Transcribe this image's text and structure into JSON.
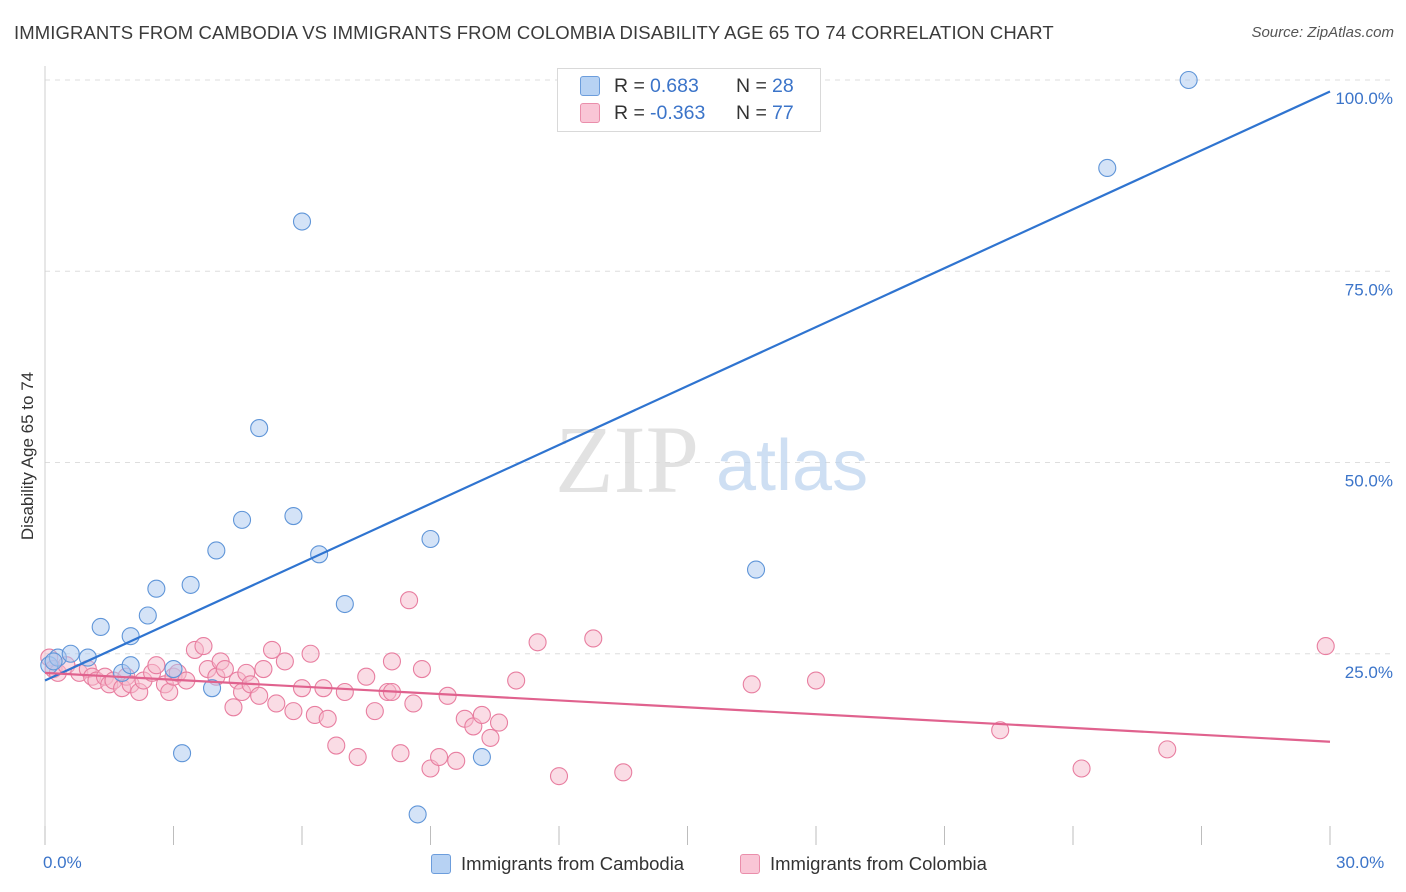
{
  "header": {
    "title": "IMMIGRANTS FROM CAMBODIA VS IMMIGRANTS FROM COLOMBIA DISABILITY AGE 65 TO 74 CORRELATION CHART",
    "source": "Source: ZipAtlas.com"
  },
  "watermark": {
    "zip": "ZIP",
    "atlas": "atlas"
  },
  "legend": {
    "cambodia": {
      "r_label": "R =",
      "r_value": "0.683",
      "n_label": "N =",
      "n_value": "28"
    },
    "colombia": {
      "r_label": "R =",
      "r_value": "-0.363",
      "n_label": "N =",
      "n_value": "77"
    }
  },
  "bottom_legend": {
    "cambodia": "Immigrants from Cambodia",
    "colombia": "Immigrants from Colombia"
  },
  "axes": {
    "ylabel": "Disability Age 65 to 74",
    "x_min_label": "0.0%",
    "x_max_label": "30.0%"
  },
  "colors": {
    "cambodia_fill": "#a9c8ef",
    "cambodia_stroke": "#5f95d8",
    "cambodia_line": "#2f74d0",
    "colombia_fill": "#f6b9cc",
    "colombia_stroke": "#e87ea0",
    "colombia_line": "#e0628e",
    "tick_label": "#3b74c9",
    "grid": "#dedede"
  },
  "chart_data": {
    "type": "scatter",
    "title": "IMMIGRANTS FROM CAMBODIA VS IMMIGRANTS FROM COLOMBIA DISABILITY AGE 65 TO 74 CORRELATION CHART",
    "xlabel": "",
    "ylabel": "Disability Age 65 to 74",
    "xlim": [
      0,
      30
    ],
    "ylim": [
      0,
      100
    ],
    "y_ticks": [
      25,
      50,
      75,
      100
    ],
    "y_tick_labels": [
      "25.0%",
      "50.0%",
      "75.0%",
      "100.0%"
    ],
    "x_tick_labels": [
      "0.0%",
      "30.0%"
    ],
    "grid": true,
    "legend_placement": "top-center",
    "series": [
      {
        "name": "Immigrants from Cambodia",
        "r": 0.683,
        "n": 28,
        "trend": [
          [
            0,
            21.5
          ],
          [
            30,
            98.5
          ]
        ],
        "points": [
          [
            0.1,
            23.5
          ],
          [
            0.3,
            24.5
          ],
          [
            0.6,
            25
          ],
          [
            1.0,
            24.5
          ],
          [
            1.3,
            28.5
          ],
          [
            1.8,
            22.5
          ],
          [
            2.0,
            23.5
          ],
          [
            2.0,
            27.3
          ],
          [
            2.4,
            30
          ],
          [
            2.6,
            33.5
          ],
          [
            3.0,
            23
          ],
          [
            3.2,
            12
          ],
          [
            3.4,
            34
          ],
          [
            3.9,
            20.5
          ],
          [
            4.0,
            38.5
          ],
          [
            4.6,
            42.5
          ],
          [
            5.0,
            54.5
          ],
          [
            5.8,
            43
          ],
          [
            6.0,
            81.5
          ],
          [
            6.4,
            38
          ],
          [
            7.0,
            31.5
          ],
          [
            8.7,
            4
          ],
          [
            9.0,
            40
          ],
          [
            10.2,
            11.5
          ],
          [
            16.6,
            36
          ],
          [
            24.8,
            88.5
          ],
          [
            26.7,
            100
          ],
          [
            0.2,
            24
          ]
        ]
      },
      {
        "name": "Immigrants from Colombia",
        "r": -0.363,
        "n": 77,
        "trend": [
          [
            0,
            22.5
          ],
          [
            30,
            13.5
          ]
        ],
        "points": [
          [
            0.1,
            24.5
          ],
          [
            0.2,
            23
          ],
          [
            0.3,
            22.5
          ],
          [
            0.5,
            23.5
          ],
          [
            0.8,
            22.5
          ],
          [
            1.0,
            23
          ],
          [
            1.1,
            22
          ],
          [
            1.2,
            21.5
          ],
          [
            1.4,
            22
          ],
          [
            1.5,
            21
          ],
          [
            1.6,
            21.5
          ],
          [
            1.8,
            20.5
          ],
          [
            1.9,
            22
          ],
          [
            2.0,
            21
          ],
          [
            2.2,
            20
          ],
          [
            2.3,
            21.5
          ],
          [
            2.5,
            22.5
          ],
          [
            2.6,
            23.5
          ],
          [
            2.8,
            21
          ],
          [
            2.9,
            20
          ],
          [
            3.0,
            22
          ],
          [
            3.1,
            22.5
          ],
          [
            3.3,
            21.5
          ],
          [
            3.5,
            25.5
          ],
          [
            3.7,
            26
          ],
          [
            3.8,
            23
          ],
          [
            4.0,
            22
          ],
          [
            4.1,
            24
          ],
          [
            4.2,
            23
          ],
          [
            4.4,
            18
          ],
          [
            4.5,
            21.5
          ],
          [
            4.6,
            20
          ],
          [
            4.7,
            22.5
          ],
          [
            4.8,
            21
          ],
          [
            5.0,
            19.5
          ],
          [
            5.1,
            23
          ],
          [
            5.3,
            25.5
          ],
          [
            5.4,
            18.5
          ],
          [
            5.6,
            24
          ],
          [
            5.8,
            17.5
          ],
          [
            6.0,
            20.5
          ],
          [
            6.2,
            25
          ],
          [
            6.3,
            17
          ],
          [
            6.5,
            20.5
          ],
          [
            6.6,
            16.5
          ],
          [
            6.8,
            13
          ],
          [
            7.0,
            20
          ],
          [
            7.3,
            11.5
          ],
          [
            7.5,
            22
          ],
          [
            7.7,
            17.5
          ],
          [
            8.0,
            20
          ],
          [
            8.1,
            24
          ],
          [
            8.3,
            12
          ],
          [
            8.5,
            32
          ],
          [
            8.6,
            18.5
          ],
          [
            8.8,
            23
          ],
          [
            9.0,
            10
          ],
          [
            9.2,
            11.5
          ],
          [
            9.4,
            19.5
          ],
          [
            9.6,
            11
          ],
          [
            9.8,
            16.5
          ],
          [
            10.0,
            15.5
          ],
          [
            10.2,
            17
          ],
          [
            10.4,
            14
          ],
          [
            10.6,
            16
          ],
          [
            11.0,
            21.5
          ],
          [
            11.5,
            26.5
          ],
          [
            12.0,
            9
          ],
          [
            12.8,
            27
          ],
          [
            13.5,
            9.5
          ],
          [
            16.5,
            21
          ],
          [
            18.0,
            21.5
          ],
          [
            22.3,
            15
          ],
          [
            24.2,
            10
          ],
          [
            26.2,
            12.5
          ],
          [
            29.9,
            26
          ],
          [
            8.1,
            20
          ]
        ]
      }
    ]
  }
}
